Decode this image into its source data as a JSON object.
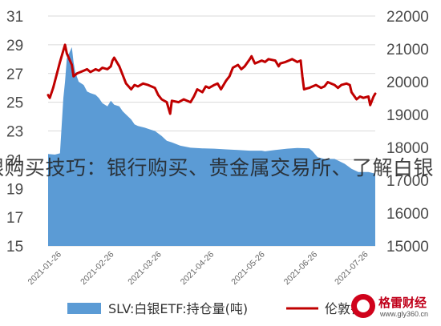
{
  "overlay_text": "银购买技巧：银行购买、贵金属交易所、了解白银",
  "watermark": {
    "name": "格雷财经",
    "url": "www.gly360.cn"
  },
  "chart_data": {
    "type": "area+line",
    "grid": true,
    "legend_position": "bottom",
    "x_ticks": [
      "2021-01-26",
      "2021-02-26",
      "2021-03-26",
      "2021-04-26",
      "2021-05-26",
      "2021-06-26",
      "2021-07-26"
    ],
    "y_left": {
      "min": 15,
      "max": 31,
      "ticks": [
        15,
        17,
        19,
        21,
        23,
        25,
        27,
        29,
        31
      ]
    },
    "y_right": {
      "min": 15000,
      "max": 22000,
      "ticks": [
        15000,
        16000,
        17000,
        18000,
        19000,
        20000,
        21000,
        22000
      ]
    },
    "x_domain": [
      "2021-01-18",
      "2021-07-30"
    ],
    "series": [
      {
        "name": "SLV:白银ETF:持仓量(吨)",
        "type": "area",
        "axis": "right",
        "color": "#5b9bd5",
        "points": [
          [
            "2021-01-18",
            17800
          ],
          [
            "2021-01-22",
            17780
          ],
          [
            "2021-01-25",
            17820
          ],
          [
            "2021-01-27",
            19500
          ],
          [
            "2021-01-28",
            20000
          ],
          [
            "2021-01-29",
            20700
          ],
          [
            "2021-02-01",
            21050
          ],
          [
            "2021-02-02",
            20600
          ],
          [
            "2021-02-03",
            20300
          ],
          [
            "2021-02-05",
            20000
          ],
          [
            "2021-02-08",
            19900
          ],
          [
            "2021-02-10",
            19700
          ],
          [
            "2021-02-12",
            19650
          ],
          [
            "2021-02-15",
            19600
          ],
          [
            "2021-02-17",
            19500
          ],
          [
            "2021-02-19",
            19350
          ],
          [
            "2021-02-22",
            19250
          ],
          [
            "2021-02-24",
            19420
          ],
          [
            "2021-02-26",
            19300
          ],
          [
            "2021-03-01",
            19250
          ],
          [
            "2021-03-03",
            19100
          ],
          [
            "2021-03-05",
            19000
          ],
          [
            "2021-03-08",
            18850
          ],
          [
            "2021-03-10",
            18700
          ],
          [
            "2021-03-12",
            18650
          ],
          [
            "2021-03-16",
            18600
          ],
          [
            "2021-03-19",
            18550
          ],
          [
            "2021-03-22",
            18500
          ],
          [
            "2021-03-26",
            18350
          ],
          [
            "2021-03-29",
            18200
          ],
          [
            "2021-04-01",
            18150
          ],
          [
            "2021-04-06",
            18050
          ],
          [
            "2021-04-12",
            17990
          ],
          [
            "2021-04-19",
            17970
          ],
          [
            "2021-04-26",
            17960
          ],
          [
            "2021-05-03",
            17940
          ],
          [
            "2021-05-10",
            17920
          ],
          [
            "2021-05-17",
            17900
          ],
          [
            "2021-05-24",
            17900
          ],
          [
            "2021-05-26",
            17880
          ],
          [
            "2021-06-01",
            17920
          ],
          [
            "2021-06-08",
            17960
          ],
          [
            "2021-06-14",
            17980
          ],
          [
            "2021-06-21",
            17970
          ],
          [
            "2021-06-23",
            17880
          ],
          [
            "2021-06-26",
            17700
          ],
          [
            "2021-06-30",
            17650
          ],
          [
            "2021-07-06",
            17650
          ],
          [
            "2021-07-12",
            17500
          ],
          [
            "2021-07-16",
            17350
          ],
          [
            "2021-07-20",
            17250
          ],
          [
            "2021-07-26",
            17250
          ],
          [
            "2021-07-30",
            17200
          ]
        ]
      },
      {
        "name": "伦敦银",
        "type": "line",
        "axis": "left",
        "color": "#c00000",
        "points": [
          [
            "2021-01-18",
            25.5
          ],
          [
            "2021-01-19",
            25.3
          ],
          [
            "2021-01-21",
            26.0
          ],
          [
            "2021-01-25",
            27.8
          ],
          [
            "2021-01-27",
            28.6
          ],
          [
            "2021-01-28",
            29.0
          ],
          [
            "2021-01-29",
            28.4
          ],
          [
            "2021-02-01",
            27.6
          ],
          [
            "2021-02-02",
            26.8
          ],
          [
            "2021-02-04",
            27.0
          ],
          [
            "2021-02-08",
            27.2
          ],
          [
            "2021-02-10",
            27.3
          ],
          [
            "2021-02-12",
            27.1
          ],
          [
            "2021-02-15",
            27.3
          ],
          [
            "2021-02-17",
            27.2
          ],
          [
            "2021-02-19",
            27.4
          ],
          [
            "2021-02-22",
            27.3
          ],
          [
            "2021-02-24",
            27.5
          ],
          [
            "2021-02-25",
            27.9
          ],
          [
            "2021-02-26",
            28.1
          ],
          [
            "2021-03-01",
            27.5
          ],
          [
            "2021-03-03",
            26.9
          ],
          [
            "2021-03-05",
            26.3
          ],
          [
            "2021-03-08",
            25.9
          ],
          [
            "2021-03-10",
            26.2
          ],
          [
            "2021-03-12",
            26.1
          ],
          [
            "2021-03-15",
            26.3
          ],
          [
            "2021-03-18",
            26.2
          ],
          [
            "2021-03-22",
            26.0
          ],
          [
            "2021-03-24",
            25.5
          ],
          [
            "2021-03-26",
            25.2
          ],
          [
            "2021-03-29",
            25.0
          ],
          [
            "2021-03-31",
            24.2
          ],
          [
            "2021-04-01",
            25.1
          ],
          [
            "2021-04-05",
            25.0
          ],
          [
            "2021-04-08",
            25.2
          ],
          [
            "2021-04-12",
            25.0
          ],
          [
            "2021-04-14",
            25.4
          ],
          [
            "2021-04-16",
            25.9
          ],
          [
            "2021-04-19",
            25.7
          ],
          [
            "2021-04-21",
            26.1
          ],
          [
            "2021-04-23",
            26.0
          ],
          [
            "2021-04-26",
            26.2
          ],
          [
            "2021-04-28",
            26.3
          ],
          [
            "2021-04-30",
            25.9
          ],
          [
            "2021-05-03",
            26.5
          ],
          [
            "2021-05-05",
            26.8
          ],
          [
            "2021-05-07",
            27.4
          ],
          [
            "2021-05-10",
            27.6
          ],
          [
            "2021-05-12",
            27.3
          ],
          [
            "2021-05-14",
            27.5
          ],
          [
            "2021-05-17",
            28.0
          ],
          [
            "2021-05-18",
            28.2
          ],
          [
            "2021-05-20",
            27.7
          ],
          [
            "2021-05-24",
            27.9
          ],
          [
            "2021-05-26",
            27.8
          ],
          [
            "2021-05-28",
            28.0
          ],
          [
            "2021-06-01",
            27.9
          ],
          [
            "2021-06-03",
            27.5
          ],
          [
            "2021-06-04",
            27.7
          ],
          [
            "2021-06-07",
            27.8
          ],
          [
            "2021-06-09",
            27.9
          ],
          [
            "2021-06-11",
            28.0
          ],
          [
            "2021-06-14",
            27.8
          ],
          [
            "2021-06-16",
            27.9
          ],
          [
            "2021-06-17",
            26.8
          ],
          [
            "2021-06-18",
            25.9
          ],
          [
            "2021-06-21",
            26.0
          ],
          [
            "2021-06-23",
            26.1
          ],
          [
            "2021-06-25",
            26.2
          ],
          [
            "2021-06-28",
            26.0
          ],
          [
            "2021-06-30",
            26.1
          ],
          [
            "2021-07-02",
            26.4
          ],
          [
            "2021-07-06",
            26.2
          ],
          [
            "2021-07-08",
            26.0
          ],
          [
            "2021-07-10",
            26.2
          ],
          [
            "2021-07-13",
            26.3
          ],
          [
            "2021-07-15",
            26.2
          ],
          [
            "2021-07-16",
            25.7
          ],
          [
            "2021-07-19",
            25.2
          ],
          [
            "2021-07-21",
            25.4
          ],
          [
            "2021-07-23",
            25.3
          ],
          [
            "2021-07-26",
            25.4
          ],
          [
            "2021-07-27",
            24.8
          ],
          [
            "2021-07-29",
            25.4
          ],
          [
            "2021-07-30",
            25.6
          ]
        ]
      }
    ]
  }
}
